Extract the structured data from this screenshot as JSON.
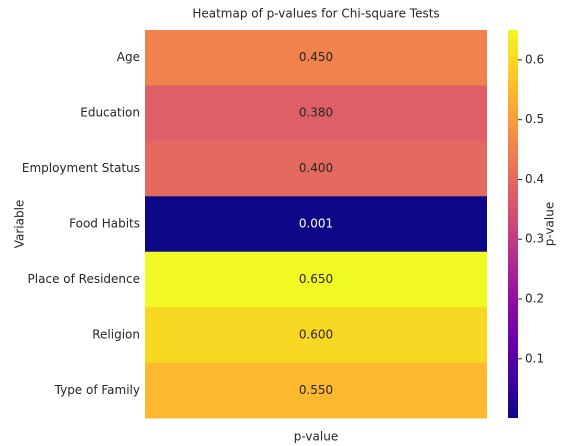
{
  "chart_data": {
    "type": "heatmap",
    "title": "Heatmap of p-values for Chi-square Tests",
    "ylabel": "Variable",
    "columns": [
      "p-value"
    ],
    "categories": [
      "Age",
      "Education",
      "Employment Status",
      "Food Habits",
      "Place of Residence",
      "Religion",
      "Type of Family"
    ],
    "values": [
      0.45,
      0.38,
      0.4,
      0.001,
      0.65,
      0.6,
      0.55
    ],
    "value_labels": [
      "0.450",
      "0.380",
      "0.400",
      "0.001",
      "0.650",
      "0.600",
      "0.550"
    ],
    "colormap": "plasma",
    "clim": [
      0.001,
      0.65
    ],
    "colorbar_label": "p-value",
    "colorbar_ticks": [
      0.1,
      0.2,
      0.3,
      0.4,
      0.5,
      0.6
    ]
  }
}
